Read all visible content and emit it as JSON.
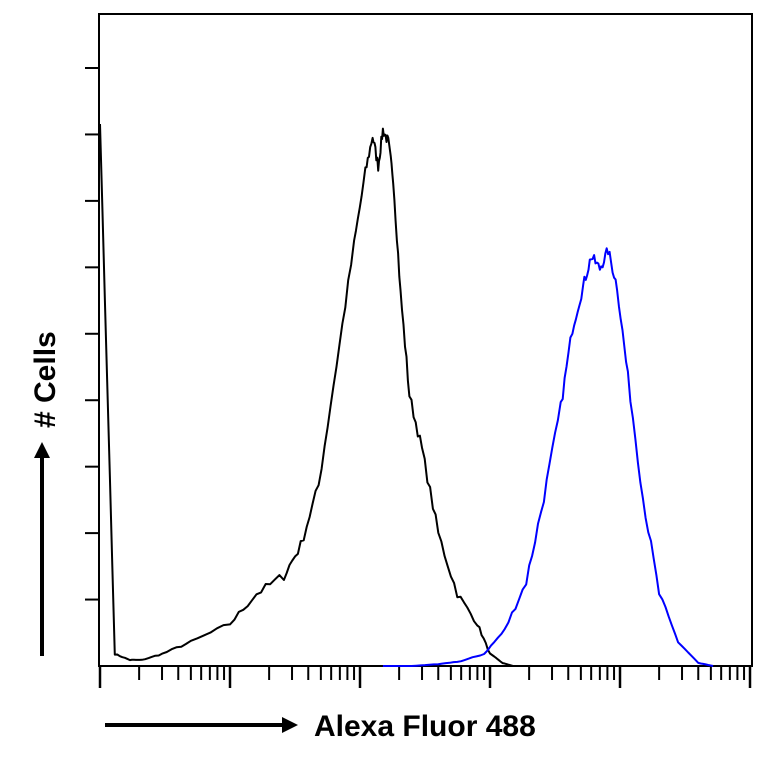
{
  "chart_data": {
    "type": "line",
    "chart_kind": "flow cytometry histogram overlay",
    "xlabel": "Alexa Fluor 488",
    "ylabel": "# Cells",
    "x_scale": "log",
    "xlim": [
      1,
      100000
    ],
    "ylim": [
      0,
      1
    ],
    "y_scale": "relative",
    "grid": false,
    "legend": "none",
    "series": [
      {
        "color": "#000000",
        "x": [
          1,
          1.3,
          1.7,
          2.1,
          3.0,
          5.0,
          10.0,
          16.0,
          26.0,
          35.0,
          48.0,
          66.0,
          90.0,
          110.0,
          125.0,
          138.0,
          150.0,
          165.0,
          180.0,
          205.0,
          240.0,
          300.0,
          400.0,
          560.0,
          800.0,
          1000.0,
          1250.0,
          1500.0
        ],
        "y": [
          0.9,
          0.02,
          0.01,
          0.01,
          0.02,
          0.04,
          0.07,
          0.12,
          0.15,
          0.2,
          0.3,
          0.5,
          0.7,
          0.82,
          0.88,
          0.83,
          0.89,
          0.87,
          0.81,
          0.62,
          0.45,
          0.36,
          0.22,
          0.12,
          0.07,
          0.02,
          0.005,
          0
        ]
      },
      {
        "color": "#0000ff",
        "x": [
          150,
          250,
          400,
          600,
          900,
          1300,
          1900,
          2600,
          3500,
          4300,
          5200,
          6000,
          7000,
          8100,
          9500,
          11500,
          15000,
          20000,
          28000,
          40000,
          52000
        ],
        "y": [
          0,
          0,
          0.003,
          0.008,
          0.02,
          0.06,
          0.14,
          0.28,
          0.43,
          0.56,
          0.63,
          0.68,
          0.66,
          0.69,
          0.63,
          0.48,
          0.28,
          0.12,
          0.04,
          0.005,
          0
        ]
      }
    ]
  }
}
